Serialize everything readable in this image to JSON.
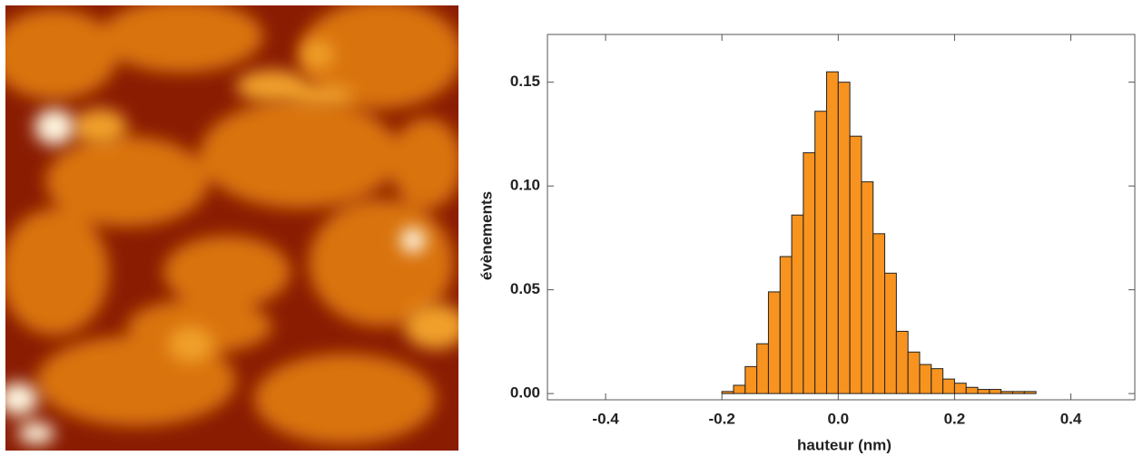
{
  "chart_data": {
    "type": "histogram",
    "xlabel": "hauteur (nm)",
    "ylabel": "évènements",
    "bins": [
      -0.2,
      -0.18,
      -0.16,
      -0.14,
      -0.12,
      -0.1,
      -0.08,
      -0.06,
      -0.04,
      -0.02,
      0,
      0.02,
      0.04,
      0.06,
      0.08,
      0.1,
      0.12,
      0.14,
      0.16,
      0.18,
      0.2,
      0.22,
      0.24,
      0.26,
      0.28,
      0.3,
      0.32,
      0.34
    ],
    "values": [
      0.001,
      0.004,
      0.013,
      0.024,
      0.049,
      0.066,
      0.086,
      0.116,
      0.136,
      0.155,
      0.15,
      0.124,
      0.102,
      0.077,
      0.058,
      0.03,
      0.02,
      0.014,
      0.012,
      0.007,
      0.005,
      0.003,
      0.002,
      0.002,
      0.001,
      0.001,
      0.001
    ],
    "color": "#f7931e",
    "xlim": [
      -0.5,
      0.51
    ],
    "ylim": [
      -0.003,
      0.173
    ],
    "xticks": [
      -0.4,
      -0.2,
      {
        "value": 0,
        "label": "0.0"
      },
      0.2,
      0.4
    ],
    "yticks": [
      {
        "value": 0,
        "label": "0.00"
      },
      {
        "value": 0.05,
        "label": "0.05"
      },
      {
        "value": 0.1,
        "label": "0.10"
      },
      {
        "value": 0.15,
        "label": "0.15"
      }
    ]
  }
}
